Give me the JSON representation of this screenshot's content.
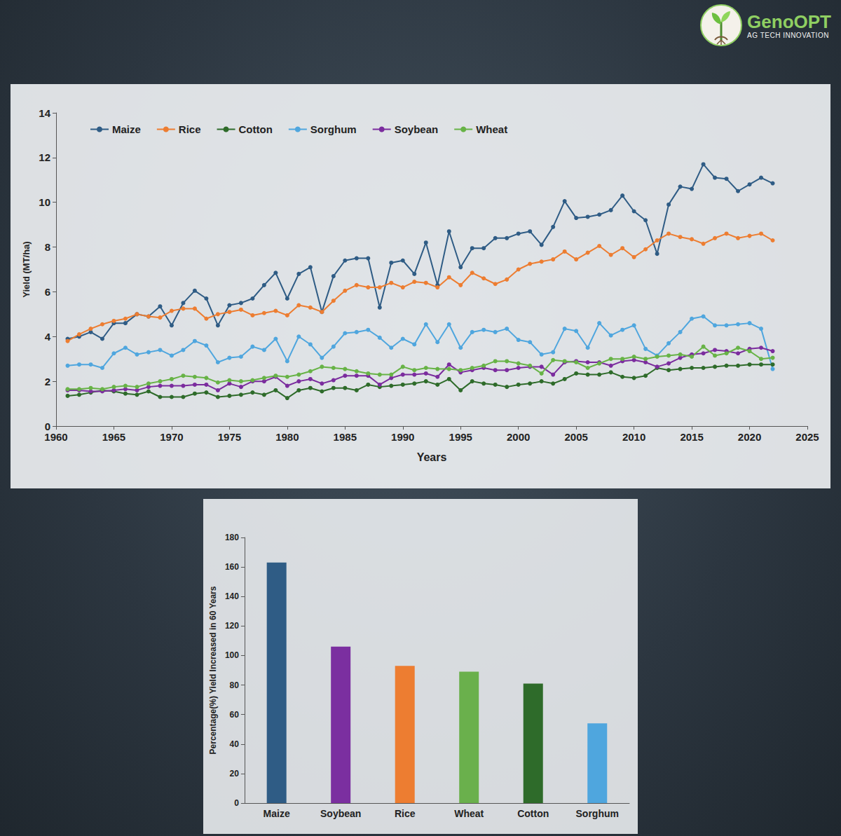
{
  "logo": {
    "title": "GenoOPT",
    "subtitle": "AG TECH INNOVATION"
  },
  "chart_data": [
    {
      "type": "line",
      "x_label": "Years",
      "y_label": "Yield (MT/ha)",
      "x": [
        1961,
        1962,
        1963,
        1964,
        1965,
        1966,
        1967,
        1968,
        1969,
        1970,
        1971,
        1972,
        1973,
        1974,
        1975,
        1976,
        1977,
        1978,
        1979,
        1980,
        1981,
        1982,
        1983,
        1984,
        1985,
        1986,
        1987,
        1988,
        1989,
        1990,
        1991,
        1992,
        1993,
        1994,
        1995,
        1996,
        1997,
        1998,
        1999,
        2000,
        2001,
        2002,
        2003,
        2004,
        2005,
        2006,
        2007,
        2008,
        2009,
        2010,
        2011,
        2012,
        2013,
        2014,
        2015,
        2016,
        2017,
        2018,
        2019,
        2020,
        2021,
        2022
      ],
      "series": [
        {
          "name": "Maize",
          "color": "#2f5c85",
          "values": [
            3.9,
            4.0,
            4.2,
            3.9,
            4.6,
            4.6,
            5.0,
            4.9,
            5.35,
            4.5,
            5.5,
            6.05,
            5.7,
            4.5,
            5.4,
            5.5,
            5.7,
            6.3,
            6.85,
            5.7,
            6.8,
            7.1,
            5.1,
            6.7,
            7.4,
            7.5,
            7.5,
            5.3,
            7.3,
            7.4,
            6.8,
            8.2,
            6.3,
            8.7,
            7.1,
            7.95,
            7.95,
            8.4,
            8.4,
            8.6,
            8.7,
            8.1,
            8.9,
            10.05,
            9.3,
            9.35,
            9.45,
            9.65,
            10.3,
            9.6,
            9.2,
            7.7,
            9.9,
            10.7,
            10.6,
            11.7,
            11.1,
            11.05,
            10.5,
            10.8,
            11.1,
            10.85
          ]
        },
        {
          "name": "Rice",
          "color": "#ed7d31",
          "values": [
            3.8,
            4.1,
            4.35,
            4.55,
            4.7,
            4.8,
            5.0,
            4.9,
            4.85,
            5.15,
            5.25,
            5.25,
            4.8,
            5.0,
            5.1,
            5.2,
            4.95,
            5.05,
            5.15,
            4.95,
            5.4,
            5.3,
            5.1,
            5.6,
            6.05,
            6.3,
            6.2,
            6.2,
            6.4,
            6.2,
            6.45,
            6.4,
            6.2,
            6.65,
            6.3,
            6.85,
            6.6,
            6.35,
            6.55,
            7.0,
            7.25,
            7.35,
            7.45,
            7.8,
            7.45,
            7.75,
            8.05,
            7.65,
            7.95,
            7.55,
            7.9,
            8.3,
            8.6,
            8.45,
            8.35,
            8.15,
            8.4,
            8.6,
            8.4,
            8.5,
            8.6,
            8.3
          ]
        },
        {
          "name": "Cotton",
          "color": "#2e6b2a",
          "values": [
            1.35,
            1.4,
            1.5,
            1.6,
            1.55,
            1.45,
            1.4,
            1.55,
            1.3,
            1.3,
            1.3,
            1.45,
            1.5,
            1.3,
            1.35,
            1.4,
            1.5,
            1.4,
            1.6,
            1.25,
            1.6,
            1.7,
            1.55,
            1.7,
            1.7,
            1.6,
            1.85,
            1.75,
            1.8,
            1.85,
            1.9,
            2.0,
            1.85,
            2.1,
            1.6,
            2.0,
            1.9,
            1.85,
            1.75,
            1.85,
            1.9,
            2.0,
            1.9,
            2.1,
            2.35,
            2.3,
            2.3,
            2.4,
            2.2,
            2.15,
            2.25,
            2.6,
            2.5,
            2.55,
            2.6,
            2.6,
            2.65,
            2.7,
            2.7,
            2.75,
            2.75,
            2.75
          ]
        },
        {
          "name": "Sorghum",
          "color": "#4fa6de",
          "values": [
            2.7,
            2.75,
            2.75,
            2.6,
            3.25,
            3.5,
            3.2,
            3.3,
            3.4,
            3.15,
            3.4,
            3.8,
            3.6,
            2.85,
            3.05,
            3.1,
            3.55,
            3.4,
            3.9,
            2.9,
            4.0,
            3.65,
            3.05,
            3.55,
            4.15,
            4.2,
            4.3,
            3.95,
            3.5,
            3.9,
            3.65,
            4.55,
            3.75,
            4.55,
            3.5,
            4.2,
            4.3,
            4.2,
            4.35,
            3.85,
            3.75,
            3.2,
            3.3,
            4.35,
            4.25,
            3.5,
            4.6,
            4.05,
            4.3,
            4.5,
            3.45,
            3.15,
            3.7,
            4.2,
            4.8,
            4.9,
            4.5,
            4.5,
            4.55,
            4.6,
            4.35,
            2.55
          ]
        },
        {
          "name": "Soybean",
          "color": "#7b2c9e",
          "values": [
            1.6,
            1.6,
            1.55,
            1.55,
            1.6,
            1.65,
            1.6,
            1.75,
            1.8,
            1.8,
            1.8,
            1.85,
            1.85,
            1.6,
            1.9,
            1.75,
            2.0,
            2.0,
            2.2,
            1.8,
            2.0,
            2.1,
            1.9,
            2.05,
            2.25,
            2.25,
            2.25,
            1.85,
            2.15,
            2.3,
            2.3,
            2.35,
            2.2,
            2.75,
            2.4,
            2.5,
            2.6,
            2.5,
            2.5,
            2.6,
            2.65,
            2.65,
            2.3,
            2.85,
            2.9,
            2.85,
            2.85,
            2.7,
            2.9,
            2.95,
            2.85,
            2.65,
            2.8,
            3.05,
            3.2,
            3.25,
            3.4,
            3.35,
            3.25,
            3.45,
            3.5,
            3.35
          ]
        },
        {
          "name": "Wheat",
          "color": "#67b346",
          "values": [
            1.65,
            1.65,
            1.7,
            1.65,
            1.75,
            1.8,
            1.75,
            1.9,
            2.0,
            2.1,
            2.25,
            2.2,
            2.15,
            1.95,
            2.05,
            2.0,
            2.05,
            2.15,
            2.25,
            2.2,
            2.3,
            2.45,
            2.65,
            2.6,
            2.55,
            2.45,
            2.35,
            2.3,
            2.3,
            2.65,
            2.5,
            2.6,
            2.55,
            2.55,
            2.5,
            2.6,
            2.7,
            2.9,
            2.9,
            2.8,
            2.7,
            2.35,
            2.95,
            2.9,
            2.85,
            2.6,
            2.8,
            3.0,
            3.0,
            3.1,
            3.0,
            3.1,
            3.15,
            3.2,
            3.1,
            3.55,
            3.15,
            3.25,
            3.5,
            3.35,
            3.0,
            3.05
          ]
        }
      ],
      "xlim": [
        1960,
        2025
      ],
      "xticks": [
        1960,
        1965,
        1970,
        1975,
        1980,
        1985,
        1990,
        1995,
        2000,
        2005,
        2010,
        2015,
        2020,
        2025
      ],
      "ylim": [
        0,
        14
      ],
      "yticks": [
        0,
        2,
        4,
        6,
        8,
        10,
        12,
        14
      ],
      "grid": false,
      "legend": "top-left",
      "marker": "circle",
      "line_style": "solid"
    },
    {
      "type": "bar",
      "y_label": "Percentage(%) Yield Increased in 60 Years",
      "categories": [
        "Maize",
        "Soybean",
        "Rice",
        "Wheat",
        "Cotton",
        "Sorghum"
      ],
      "values": [
        163,
        106,
        93,
        89,
        81,
        54
      ],
      "colors": [
        "#2f5c85",
        "#7b2fa0",
        "#ed7d31",
        "#6ab04c",
        "#2e6b2a",
        "#4fa6de"
      ],
      "ylim": [
        0,
        180
      ],
      "yticks": [
        0,
        20,
        40,
        60,
        80,
        100,
        120,
        140,
        160,
        180
      ],
      "grid": false
    }
  ]
}
